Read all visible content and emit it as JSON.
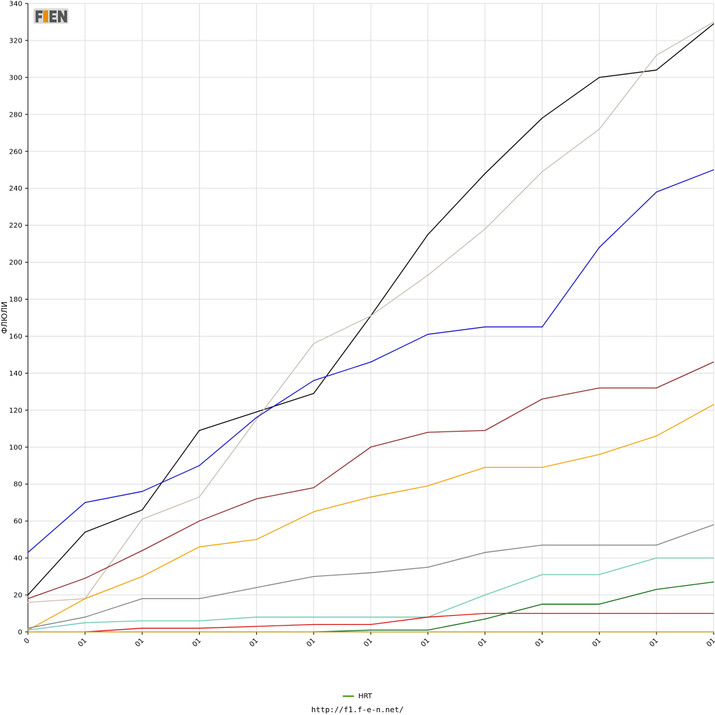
{
  "chart_data": {
    "type": "line",
    "ylabel": "ФЛЮЛИ",
    "xlabel": "",
    "ylim": [
      0,
      340
    ],
    "yticks": [
      0,
      20,
      40,
      60,
      80,
      100,
      120,
      140,
      160,
      180,
      200,
      220,
      240,
      260,
      280,
      300,
      320,
      340
    ],
    "x_tick_labels": [
      "0",
      "01",
      "01",
      "01",
      "01",
      "01",
      "01",
      "01",
      "01",
      "01",
      "01",
      "01",
      "01"
    ],
    "grid": true,
    "legend_position": "bottom-center",
    "legend": [
      {
        "name": "HRT",
        "color": "#4a9a1a"
      }
    ],
    "series": [
      {
        "color": "#000000",
        "values": [
          20,
          54,
          66,
          109,
          119,
          129,
          171,
          215,
          248,
          278,
          300,
          304,
          329
        ]
      },
      {
        "color": "#c8bcb0",
        "values": [
          16,
          18,
          61,
          73,
          115,
          156,
          171,
          193,
          218,
          249,
          272,
          312,
          330
        ]
      },
      {
        "color": "#1010c8",
        "values": [
          43,
          70,
          76,
          90,
          116,
          136,
          146,
          161,
          165,
          165,
          208,
          238,
          250
        ]
      },
      {
        "color": "#8b2a2a",
        "values": [
          18,
          29,
          44,
          60,
          72,
          78,
          100,
          108,
          109,
          126,
          132,
          132,
          146
        ]
      },
      {
        "color": "#f0a000",
        "values": [
          1,
          18,
          30,
          46,
          50,
          65,
          73,
          79,
          89,
          89,
          96,
          106,
          123
        ]
      },
      {
        "color": "#808080",
        "values": [
          2,
          8,
          18,
          18,
          24,
          30,
          32,
          35,
          43,
          47,
          47,
          47,
          58
        ]
      },
      {
        "color": "#66c8b0",
        "values": [
          1,
          5,
          6,
          6,
          8,
          8,
          8,
          8,
          20,
          31,
          31,
          40,
          40
        ]
      },
      {
        "color": "#0a6a0a",
        "values": [
          null,
          null,
          null,
          null,
          null,
          0,
          1,
          1,
          7,
          15,
          15,
          23,
          27
        ]
      },
      {
        "color": "#d81010",
        "values": [
          null,
          0,
          2,
          2,
          3,
          4,
          4,
          8,
          10,
          10,
          10,
          10,
          10
        ]
      },
      {
        "color": "#c09000",
        "values": [
          0,
          0,
          0,
          0,
          0,
          0,
          0,
          0,
          0,
          0,
          0,
          0,
          0
        ]
      }
    ]
  },
  "legend_label": "HRT",
  "footer_url": "http://f1.f-e-n.net/",
  "logo_text": "F1EN"
}
